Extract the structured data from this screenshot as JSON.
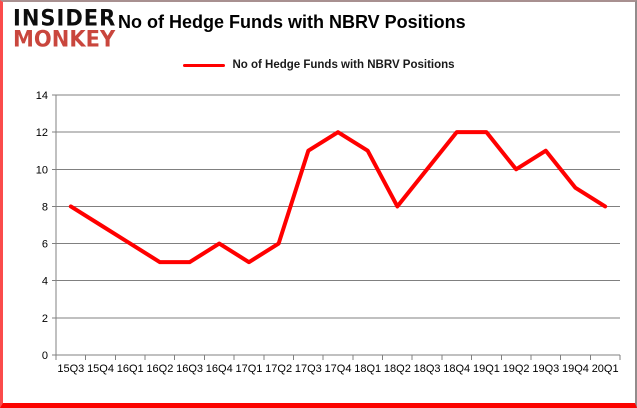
{
  "branding": {
    "line1": "INSIDER",
    "line2": "MONKEY",
    "brand_red": "#C9463D"
  },
  "header": {
    "title": "No of Hedge Funds with NBRV Positions"
  },
  "legend": {
    "label": "No of Hedge Funds with NBRV Positions"
  },
  "chart_data": {
    "type": "line",
    "title": "No of Hedge Funds with NBRV Positions",
    "categories": [
      "15Q3",
      "15Q4",
      "16Q1",
      "16Q2",
      "16Q3",
      "16Q4",
      "17Q1",
      "17Q2",
      "17Q3",
      "17Q4",
      "18Q1",
      "18Q2",
      "18Q3",
      "18Q4",
      "19Q1",
      "19Q2",
      "19Q3",
      "19Q4",
      "20Q1"
    ],
    "values": [
      8,
      7,
      6,
      5,
      5,
      6,
      5,
      6,
      11,
      12,
      11,
      8,
      10,
      12,
      12,
      10,
      11,
      9,
      8
    ],
    "xlabel": "",
    "ylabel": "",
    "ylim": [
      0,
      14
    ],
    "yticks": [
      0,
      2,
      4,
      6,
      8,
      10,
      12,
      14
    ],
    "grid": true,
    "legend_position": "top-center",
    "line_color": "#FF0000",
    "line_width": 4,
    "grid_color": "#808080",
    "axis_color": "#808080",
    "tick_label_color": "#000000",
    "tick_font_size": 11
  }
}
